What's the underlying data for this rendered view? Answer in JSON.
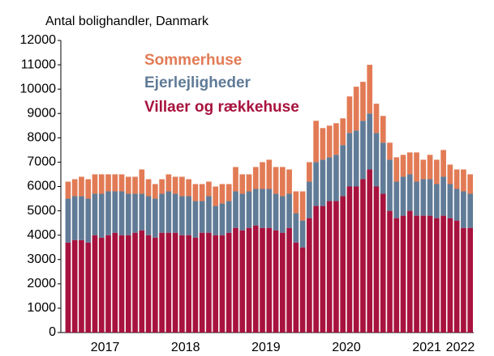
{
  "chart_data": {
    "type": "bar",
    "stacked": true,
    "subtitle": "Antal bolighandler, Danmark",
    "categories": [
      null,
      null,
      null,
      null,
      null,
      null,
      "2017",
      null,
      null,
      null,
      null,
      null,
      null,
      null,
      null,
      null,
      null,
      null,
      "2018",
      null,
      null,
      null,
      null,
      null,
      null,
      null,
      null,
      null,
      null,
      null,
      "2019",
      null,
      null,
      null,
      null,
      null,
      null,
      null,
      null,
      null,
      null,
      null,
      "2020",
      null,
      null,
      null,
      null,
      null,
      null,
      null,
      null,
      null,
      null,
      null,
      "2021",
      null,
      null,
      null,
      null,
      "2022",
      null
    ],
    "series": [
      {
        "name": "Villaer og rækkehuse",
        "color": "#a8123e",
        "values": [
          3700,
          3800,
          3800,
          3700,
          4000,
          3900,
          4000,
          4100,
          4000,
          4000,
          4100,
          4200,
          4000,
          3900,
          4100,
          4100,
          4100,
          4000,
          4000,
          3900,
          4100,
          4100,
          4000,
          4000,
          4100,
          4300,
          4200,
          4300,
          4400,
          4300,
          4300,
          4200,
          4100,
          4300,
          3700,
          3500,
          4700,
          5200,
          5200,
          5400,
          5400,
          5600,
          6000,
          6000,
          6300,
          6700,
          6000,
          5700,
          5000,
          4700,
          4800,
          5000,
          4800,
          4800,
          4800,
          4700,
          4800,
          4700,
          4600,
          4300,
          4300
        ]
      },
      {
        "name": "Ejerlejligheder",
        "color": "#607b97",
        "values": [
          1800,
          1800,
          1800,
          1800,
          1700,
          1800,
          1800,
          1700,
          1800,
          1700,
          1600,
          1500,
          1600,
          1600,
          1600,
          1700,
          1600,
          1600,
          1600,
          1500,
          1300,
          1500,
          1200,
          1300,
          1300,
          1500,
          1500,
          1500,
          1500,
          1600,
          1600,
          1500,
          1500,
          1400,
          1200,
          1100,
          1500,
          1800,
          1900,
          1800,
          1900,
          2100,
          2200,
          2300,
          2400,
          2300,
          2200,
          2100,
          2100,
          1500,
          1600,
          1500,
          1400,
          1500,
          1500,
          1400,
          1600,
          1400,
          1300,
          1500,
          1400
        ]
      },
      {
        "name": "Sommerhuse",
        "color": "#e27b55",
        "values": [
          700,
          700,
          800,
          800,
          800,
          800,
          700,
          700,
          700,
          700,
          700,
          1000,
          700,
          600,
          600,
          700,
          700,
          800,
          700,
          700,
          700,
          600,
          800,
          800,
          700,
          1000,
          800,
          700,
          900,
          1100,
          1200,
          1100,
          1200,
          1000,
          900,
          1200,
          800,
          1700,
          1300,
          1300,
          1300,
          1100,
          1500,
          1800,
          1600,
          2000,
          1200,
          1100,
          700,
          1000,
          900,
          900,
          1200,
          800,
          1000,
          1000,
          1100,
          800,
          800,
          900,
          800
        ]
      }
    ],
    "ylim": [
      0,
      12000
    ],
    "yticks": [
      0,
      1000,
      2000,
      3000,
      4000,
      5000,
      6000,
      7000,
      8000,
      9000,
      10000,
      11000,
      12000
    ]
  }
}
